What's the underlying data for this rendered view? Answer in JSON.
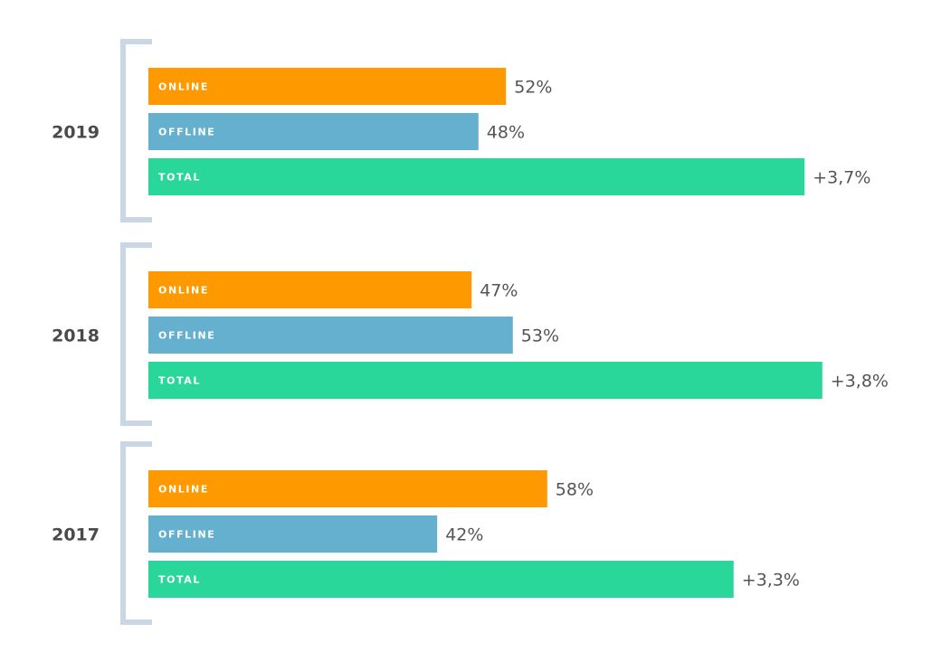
{
  "colors": {
    "online": "#ff9900",
    "offline": "#66b0cf",
    "total": "#2ad79b",
    "bracket": "#c9d7e4",
    "year_text": "#4a4a4a",
    "value_text": "#555555"
  },
  "chart_data": {
    "type": "bar",
    "orientation": "horizontal",
    "title": "",
    "xlabel": "",
    "ylabel": "",
    "grid": false,
    "legend": "none",
    "groups": [
      {
        "year": "2019",
        "bars": [
          {
            "key": "online",
            "label": "ONLINE",
            "value": 52,
            "value_label": "52%"
          },
          {
            "key": "offline",
            "label": "OFFLINE",
            "value": 48,
            "value_label": "48%"
          },
          {
            "key": "total",
            "label": "TOTAL",
            "value": 3.7,
            "value_label": "+3,7%"
          }
        ]
      },
      {
        "year": "2018",
        "bars": [
          {
            "key": "online",
            "label": "ONLINE",
            "value": 47,
            "value_label": "47%"
          },
          {
            "key": "offline",
            "label": "OFFLINE",
            "value": 53,
            "value_label": "53%"
          },
          {
            "key": "total",
            "label": "TOTAL",
            "value": 3.8,
            "value_label": "+3,8%"
          }
        ]
      },
      {
        "year": "2017",
        "bars": [
          {
            "key": "online",
            "label": "ONLINE",
            "value": 58,
            "value_label": "58%"
          },
          {
            "key": "offline",
            "label": "OFFLINE",
            "value": 42,
            "value_label": "42%"
          },
          {
            "key": "total",
            "label": "TOTAL",
            "value": 3.3,
            "value_label": "+3,3%"
          }
        ]
      }
    ]
  }
}
